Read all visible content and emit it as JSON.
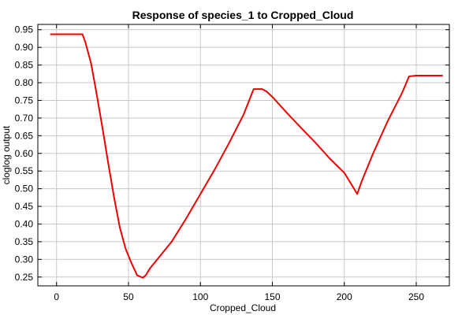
{
  "chart_data": {
    "type": "line",
    "title": "Response of species_1 to Cropped_Cloud",
    "xlabel": "Cropped_Cloud",
    "ylabel": "cloglog output",
    "xlim": [
      -13,
      273
    ],
    "ylim": [
      0.225,
      0.965
    ],
    "xticks": [
      0,
      50,
      100,
      150,
      200,
      250
    ],
    "xtick_labels": [
      "0",
      "50",
      "100",
      "150",
      "200",
      "250"
    ],
    "yticks": [
      0.25,
      0.3,
      0.35,
      0.4,
      0.45,
      0.5,
      0.55,
      0.6,
      0.65,
      0.7,
      0.75,
      0.8,
      0.85,
      0.9,
      0.95
    ],
    "ytick_labels": [
      "0.25",
      "0.30",
      "0.35",
      "0.40",
      "0.45",
      "0.50",
      "0.55",
      "0.60",
      "0.65",
      "0.70",
      "0.75",
      "0.80",
      "0.85",
      "0.90",
      "0.95"
    ],
    "grid": true,
    "series": [
      {
        "color": "#ee0000",
        "x": [
          -4,
          18,
          20,
          24,
          28,
          32,
          36,
          40,
          44,
          48,
          52,
          56,
          60,
          62,
          65,
          70,
          80,
          90,
          100,
          110,
          120,
          130,
          137,
          143,
          146,
          150,
          160,
          170,
          180,
          190,
          200,
          206,
          209,
          212,
          220,
          230,
          240,
          245,
          250,
          268
        ],
        "y": [
          0.937,
          0.937,
          0.915,
          0.855,
          0.765,
          0.67,
          0.57,
          0.475,
          0.39,
          0.33,
          0.29,
          0.255,
          0.248,
          0.255,
          0.275,
          0.3,
          0.35,
          0.415,
          0.485,
          0.555,
          0.63,
          0.71,
          0.782,
          0.782,
          0.775,
          0.76,
          0.715,
          0.672,
          0.63,
          0.585,
          0.545,
          0.505,
          0.485,
          0.52,
          0.6,
          0.69,
          0.77,
          0.818,
          0.82,
          0.82
        ]
      }
    ]
  }
}
